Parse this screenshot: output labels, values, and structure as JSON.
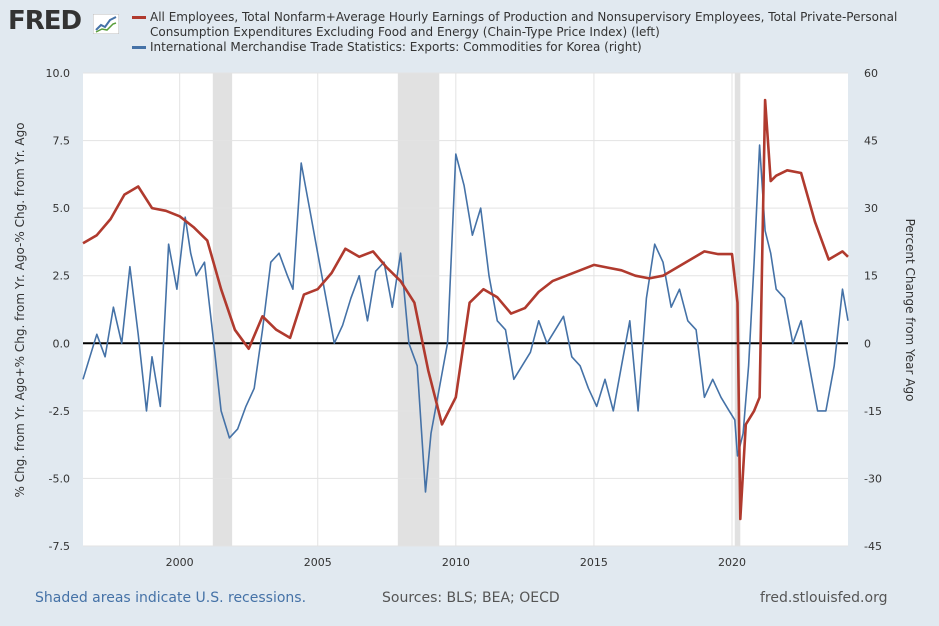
{
  "branding": {
    "logo": "FRED",
    "url": "fred.stlouisfed.org"
  },
  "legend": {
    "left_series_label": "All Employees, Total Nonfarm+Average Hourly Earnings of Production and Nonsupervisory Employees, Total Private-Personal Consumption Expenditures Excluding Food and Energy (Chain-Type Price Index) (left)",
    "right_series_label": "International Merchandise Trade Statistics: Exports: Commodities for Korea (right)"
  },
  "footer": {
    "recession_note": "Shaded areas indicate U.S. recessions.",
    "sources": "Sources: BLS; BEA; OECD",
    "site": "fred.stlouisfed.org"
  },
  "colors": {
    "left_series": "#b03a2e",
    "right_series": "#4572a7",
    "recession": "#e1e1e1"
  },
  "chart_data": {
    "type": "line",
    "ylabel": "% Chg. from Yr. Ago+% Chg. from Yr. Ago-% Chg. from Yr. Ago",
    "ylabel_right": "Percent Change from Year Ago",
    "xlim": [
      1996.5,
      2024.2
    ],
    "ylim": [
      -7.5,
      10.0
    ],
    "ylim_right": [
      -45,
      60
    ],
    "x_ticks": [
      2000,
      2005,
      2010,
      2015,
      2020
    ],
    "x_tick_labels": [
      "2000",
      "2005",
      "2010",
      "2015",
      "2020"
    ],
    "y_ticks": [
      -7.5,
      -5.0,
      -2.5,
      0.0,
      2.5,
      5.0,
      7.5,
      10.0
    ],
    "y_tick_labels": [
      "-7.5",
      "-5.0",
      "-2.5",
      "0.0",
      "2.5",
      "5.0",
      "7.5",
      "10.0"
    ],
    "y_ticks_right": [
      -45,
      -30,
      -15,
      0,
      15,
      30,
      45,
      60
    ],
    "y_tick_labels_right": [
      "-45",
      "-30",
      "-15",
      "0",
      "15",
      "30",
      "45",
      "60"
    ],
    "recessions": [
      [
        2001.2,
        2001.9
      ],
      [
        2007.9,
        2009.4
      ],
      [
        2020.1,
        2020.3
      ]
    ],
    "series": [
      {
        "name": "All Employees+Avg Hourly Earnings-PCE ex Food & Energy",
        "axis": "left",
        "x": [
          1996.5,
          1997.0,
          1997.5,
          1998.0,
          1998.5,
          1999.0,
          1999.5,
          2000.0,
          2000.5,
          2001.0,
          2001.5,
          2002.0,
          2002.5,
          2003.0,
          2003.5,
          2004.0,
          2004.5,
          2005.0,
          2005.5,
          2006.0,
          2006.5,
          2007.0,
          2007.5,
          2008.0,
          2008.5,
          2009.0,
          2009.5,
          2010.0,
          2010.5,
          2011.0,
          2011.5,
          2012.0,
          2012.5,
          2013.0,
          2013.5,
          2014.0,
          2014.5,
          2015.0,
          2015.5,
          2016.0,
          2016.5,
          2017.0,
          2017.5,
          2018.0,
          2018.5,
          2019.0,
          2019.5,
          2020.0,
          2020.2,
          2020.3,
          2020.5,
          2020.8,
          2021.0,
          2021.2,
          2021.4,
          2021.6,
          2022.0,
          2022.5,
          2023.0,
          2023.5,
          2024.0,
          2024.2
        ],
        "values": [
          3.7,
          4.0,
          4.6,
          5.5,
          5.8,
          5.0,
          4.9,
          4.7,
          4.3,
          3.8,
          2.0,
          0.5,
          -0.2,
          1.0,
          0.5,
          0.2,
          1.8,
          2.0,
          2.6,
          3.5,
          3.2,
          3.4,
          2.8,
          2.3,
          1.5,
          -1.0,
          -3.0,
          -2.0,
          1.5,
          2.0,
          1.7,
          1.1,
          1.3,
          1.9,
          2.3,
          2.5,
          2.7,
          2.9,
          2.8,
          2.7,
          2.5,
          2.4,
          2.5,
          2.8,
          3.1,
          3.4,
          3.3,
          3.3,
          1.5,
          -6.5,
          -3.0,
          -2.5,
          -2.0,
          9.0,
          6.0,
          6.2,
          6.4,
          6.3,
          4.5,
          3.1,
          3.4,
          3.2
        ]
      },
      {
        "name": "International Merchandise Trade Statistics: Exports: Commodities for Korea",
        "axis": "right",
        "x": [
          1996.5,
          1997.0,
          1997.3,
          1997.6,
          1997.9,
          1998.2,
          1998.5,
          1998.8,
          1999.0,
          1999.3,
          1999.6,
          1999.9,
          2000.2,
          2000.4,
          2000.6,
          2000.9,
          2001.2,
          2001.5,
          2001.8,
          2002.1,
          2002.4,
          2002.7,
          2003.0,
          2003.3,
          2003.6,
          2003.9,
          2004.1,
          2004.4,
          2004.7,
          2005.0,
          2005.3,
          2005.6,
          2005.9,
          2006.2,
          2006.5,
          2006.8,
          2007.1,
          2007.4,
          2007.7,
          2008.0,
          2008.3,
          2008.6,
          2008.9,
          2009.1,
          2009.4,
          2009.7,
          2010.0,
          2010.3,
          2010.6,
          2010.9,
          2011.2,
          2011.5,
          2011.8,
          2012.1,
          2012.4,
          2012.7,
          2013.0,
          2013.3,
          2013.6,
          2013.9,
          2014.2,
          2014.5,
          2014.8,
          2015.1,
          2015.4,
          2015.7,
          2016.0,
          2016.3,
          2016.6,
          2016.9,
          2017.2,
          2017.5,
          2017.8,
          2018.1,
          2018.4,
          2018.7,
          2019.0,
          2019.3,
          2019.6,
          2019.9,
          2020.1,
          2020.2,
          2020.4,
          2020.6,
          2020.8,
          2021.0,
          2021.2,
          2021.4,
          2021.6,
          2021.9,
          2022.2,
          2022.5,
          2022.8,
          2023.1,
          2023.4,
          2023.7,
          2024.0,
          2024.2
        ],
        "values": [
          -8,
          2,
          -3,
          8,
          0,
          17,
          2,
          -15,
          -3,
          -14,
          22,
          12,
          28,
          20,
          15,
          18,
          2,
          -15,
          -21,
          -19,
          -14,
          -10,
          3,
          18,
          20,
          15,
          12,
          40,
          30,
          20,
          10,
          0,
          4,
          10,
          15,
          5,
          16,
          18,
          8,
          20,
          0,
          -5,
          -33,
          -20,
          -10,
          0,
          42,
          35,
          24,
          30,
          15,
          5,
          3,
          -8,
          -5,
          -2,
          5,
          0,
          3,
          6,
          -3,
          -5,
          -10,
          -14,
          -8,
          -15,
          -5,
          5,
          -15,
          10,
          22,
          18,
          8,
          12,
          5,
          3,
          -12,
          -8,
          -12,
          -15,
          -17,
          -25,
          -20,
          -5,
          18,
          44,
          25,
          20,
          12,
          10,
          0,
          5,
          -5,
          -15,
          -15,
          -5,
          12,
          5
        ]
      }
    ]
  }
}
